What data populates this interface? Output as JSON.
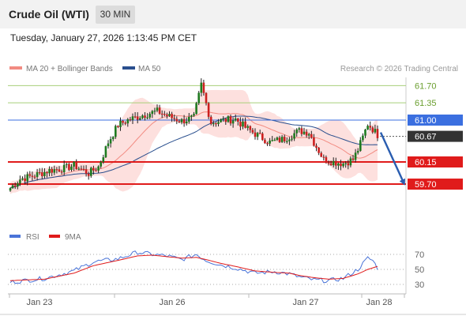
{
  "header": {
    "instrument": "Crude Oil (WTI)",
    "interval": "30 MIN",
    "timestamp": "Tuesday, January 27, 2026 1:13:45 PM CET"
  },
  "legend": {
    "items": [
      {
        "label": "MA 20 + Bollinger Bands",
        "color": "#f28b82"
      },
      {
        "label": "MA 50",
        "color": "#2a4f8e"
      }
    ],
    "attribution": "Research © 2026 Trading Central"
  },
  "chart_data": [
    {
      "type": "candlestick",
      "title": "",
      "ylim": [
        59.55,
        61.85
      ],
      "x_tick_labels": [
        "Jan 23",
        "Jan 26",
        "Jan 27",
        "Jan 28"
      ],
      "levels": [
        {
          "value": 61.7,
          "label": "61.70",
          "kind": "resistance",
          "color": "#6a9e2e"
        },
        {
          "value": 61.35,
          "label": "61.35",
          "kind": "resistance",
          "color": "#6a9e2e"
        },
        {
          "value": 61.0,
          "label": "61.00",
          "kind": "pivot",
          "color": "#3b6fe0"
        },
        {
          "value": 60.67,
          "label": "60.67",
          "kind": "last_price",
          "color": "#333333"
        },
        {
          "value": 60.15,
          "label": "60.15",
          "kind": "support",
          "color": "#e01b1b"
        },
        {
          "value": 59.7,
          "label": "59.70",
          "kind": "support",
          "color": "#e01b1b"
        }
      ],
      "expected_move": {
        "from": 60.75,
        "to": 59.7,
        "direction": "down"
      },
      "close_anchors": [
        [
          0,
          59.62
        ],
        [
          4,
          59.8
        ],
        [
          10,
          59.88
        ],
        [
          16,
          59.98
        ],
        [
          22,
          60.02
        ],
        [
          26,
          60.08
        ],
        [
          32,
          59.92
        ],
        [
          36,
          60.05
        ],
        [
          40,
          60.55
        ],
        [
          44,
          60.9
        ],
        [
          48,
          61.0
        ],
        [
          54,
          61.1
        ],
        [
          60,
          61.18
        ],
        [
          66,
          61.05
        ],
        [
          70,
          60.98
        ],
        [
          75,
          61.05
        ],
        [
          78,
          61.72
        ],
        [
          82,
          60.95
        ],
        [
          88,
          61.0
        ],
        [
          92,
          61.02
        ],
        [
          96,
          60.85
        ],
        [
          100,
          60.72
        ],
        [
          106,
          60.55
        ],
        [
          112,
          60.62
        ],
        [
          118,
          60.78
        ],
        [
          122,
          60.75
        ],
        [
          124,
          60.55
        ],
        [
          128,
          60.2
        ],
        [
          132,
          60.15
        ],
        [
          136,
          60.12
        ],
        [
          140,
          60.2
        ],
        [
          142,
          60.4
        ],
        [
          144,
          60.65
        ],
        [
          146,
          60.92
        ],
        [
          148,
          60.82
        ],
        [
          150,
          60.7
        ]
      ]
    },
    {
      "type": "line",
      "title": "",
      "ylim": [
        20,
        80
      ],
      "y_tick_labels": [
        "70",
        "50",
        "30"
      ],
      "y_ticks": [
        70,
        50,
        30
      ],
      "series": [
        {
          "name": "RSI",
          "color": "#4a74d8",
          "anchors": [
            [
              0,
              33
            ],
            [
              14,
              38
            ],
            [
              26,
              48
            ],
            [
              34,
              60
            ],
            [
              44,
              64
            ],
            [
              52,
              73
            ],
            [
              58,
              70
            ],
            [
              64,
              68
            ],
            [
              70,
              63
            ],
            [
              76,
              70
            ],
            [
              80,
              62
            ],
            [
              86,
              56
            ],
            [
              92,
              52
            ],
            [
              100,
              45
            ],
            [
              108,
              47
            ],
            [
              114,
              44
            ],
            [
              118,
              40
            ],
            [
              124,
              36
            ],
            [
              130,
              35
            ],
            [
              136,
              38
            ],
            [
              142,
              50
            ],
            [
              146,
              65
            ],
            [
              148,
              62
            ],
            [
              150,
              52
            ]
          ]
        },
        {
          "name": "9MA",
          "color": "#e01b1b",
          "anchors": [
            [
              0,
              35
            ],
            [
              14,
              37
            ],
            [
              26,
              45
            ],
            [
              34,
              55
            ],
            [
              44,
              62
            ],
            [
              52,
              68
            ],
            [
              58,
              69
            ],
            [
              64,
              67
            ],
            [
              70,
              65
            ],
            [
              76,
              66
            ],
            [
              80,
              63
            ],
            [
              86,
              58
            ],
            [
              92,
              54
            ],
            [
              100,
              48
            ],
            [
              108,
              46
            ],
            [
              114,
              45
            ],
            [
              118,
              42
            ],
            [
              124,
              39
            ],
            [
              130,
              37
            ],
            [
              136,
              38
            ],
            [
              142,
              44
            ],
            [
              146,
              50
            ],
            [
              150,
              54
            ]
          ]
        }
      ]
    }
  ]
}
